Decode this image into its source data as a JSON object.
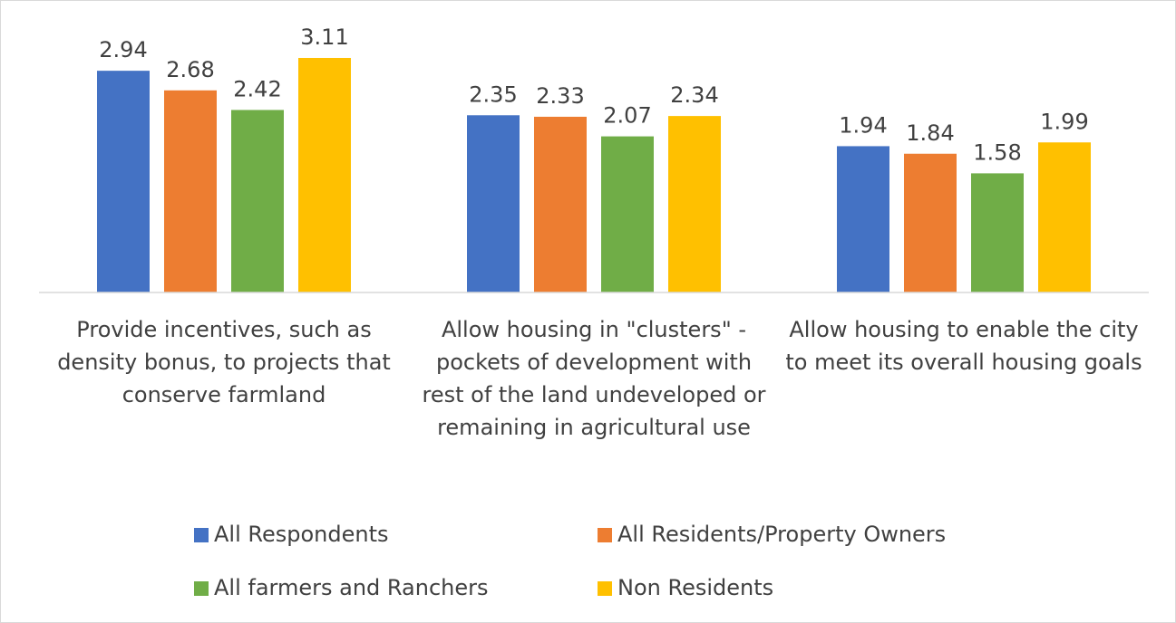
{
  "chart_data": {
    "type": "bar",
    "categories": [
      "Provide incentives, such as density bonus, to projects that conserve farmland",
      "Allow housing in \"clusters\" - pockets of development with rest of the land undeveloped or remaining in agricultural use",
      "Allow housing to enable the city to meet its overall housing goals"
    ],
    "series": [
      {
        "name": "All Respondents",
        "color": "#4472c4",
        "values": [
          2.94,
          2.35,
          1.94
        ]
      },
      {
        "name": "All Residents/Property Owners",
        "color": "#ed7d31",
        "values": [
          2.68,
          2.33,
          1.84
        ]
      },
      {
        "name": "All farmers and Ranchers",
        "color": "#70ad47",
        "values": [
          2.42,
          2.07,
          1.58
        ]
      },
      {
        "name": "Non Residents",
        "color": "#ffc000",
        "values": [
          3.11,
          2.34,
          1.99
        ]
      }
    ],
    "ylim": [
      0,
      3.5
    ],
    "legend": "bottom"
  }
}
